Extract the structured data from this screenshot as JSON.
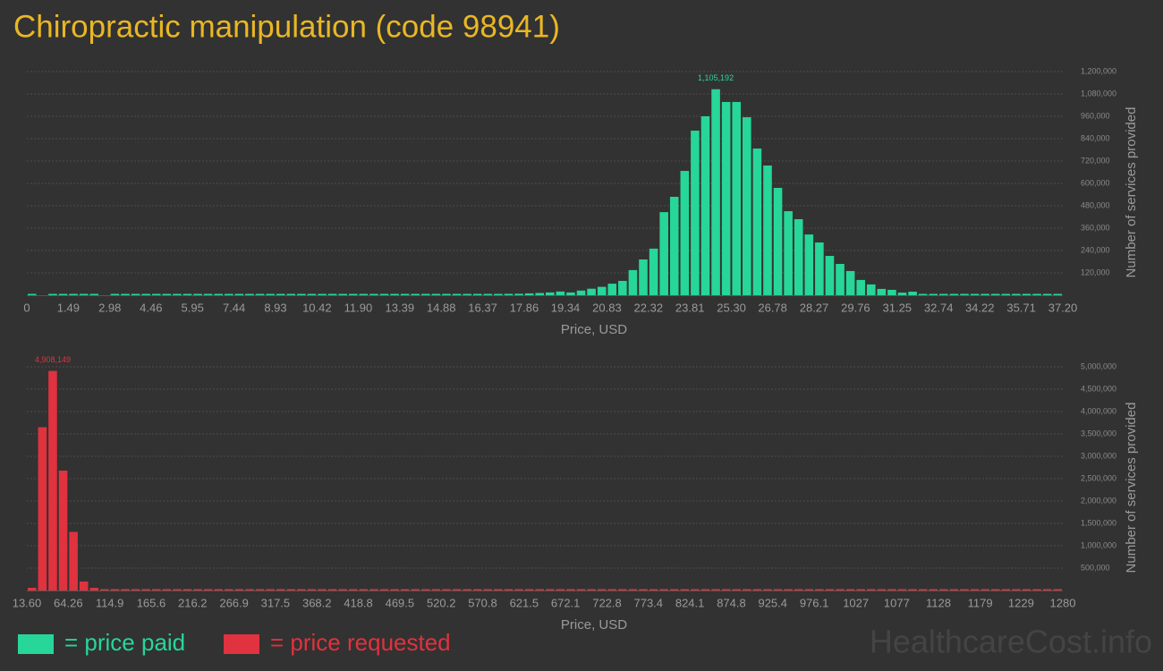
{
  "title": "Chiropractic manipulation (code 98941)",
  "watermark": "HealthcareCost.info",
  "chart_data": [
    {
      "type": "histogram",
      "name": "= price paid",
      "color": "#27d699",
      "xlabel": "Price, USD",
      "ylabel": "Number of services provided",
      "grid": true,
      "bins": [
        0,
        0.372,
        0.744,
        1.116,
        1.488,
        1.86,
        2.232,
        2.604,
        2.976,
        3.348,
        3.72,
        4.092,
        4.464,
        4.836,
        5.208,
        5.58,
        5.952,
        6.324,
        6.696,
        7.068,
        7.44,
        7.812,
        8.184,
        8.556,
        8.928,
        9.3,
        9.672,
        10.044,
        10.416,
        10.788,
        11.16,
        11.532,
        11.904,
        12.276,
        12.648,
        13.02,
        13.392,
        13.764,
        14.136,
        14.508,
        14.88,
        15.252,
        15.624,
        15.996,
        16.368,
        16.74,
        17.112,
        17.484,
        17.856,
        18.228,
        18.6,
        18.972,
        19.344,
        19.716,
        20.088,
        20.46,
        20.832,
        21.204,
        21.576,
        21.948,
        22.32,
        22.692,
        23.064,
        23.436,
        23.808,
        24.18,
        24.552,
        24.924,
        25.296,
        25.668,
        26.04,
        26.412,
        26.784,
        27.156,
        27.528,
        27.9,
        28.272,
        28.644,
        29.016,
        29.388,
        29.76,
        30.132,
        30.504,
        30.876,
        31.248,
        31.62,
        31.992,
        32.364,
        32.736,
        33.108,
        33.48,
        33.852,
        34.224,
        34.596,
        34.968,
        35.34,
        35.712,
        36.084,
        36.456,
        36.828,
        37.2
      ],
      "values": [
        3500,
        0,
        1500,
        1800,
        2000,
        800,
        500,
        0,
        1500,
        900,
        600,
        1200,
        2200,
        400,
        1800,
        700,
        600,
        2500,
        1000,
        1800,
        2100,
        1500,
        1200,
        2300,
        1900,
        2100,
        2000,
        1800,
        2200,
        2400,
        2000,
        2300,
        2100,
        2600,
        2500,
        2800,
        3000,
        2700,
        3200,
        3500,
        3400,
        3800,
        4500,
        5200,
        6000,
        7000,
        7500,
        8000,
        10000,
        12000,
        15000,
        20000,
        15000,
        25000,
        35000,
        45000,
        62000,
        77000,
        135000,
        192000,
        250000,
        446000,
        528000,
        667000,
        883000,
        960000,
        1105192,
        1037000,
        1037000,
        955000,
        787000,
        696000,
        576000,
        451000,
        408000,
        326000,
        283000,
        211000,
        168000,
        130000,
        82000,
        58000,
        34000,
        29000,
        14000,
        19000,
        5000,
        3500,
        3000,
        2500,
        2800,
        2200,
        2000,
        1800,
        2000,
        1600,
        1500,
        1700,
        1400,
        1200
      ],
      "value_labels": [
        null,
        null,
        null,
        null,
        null,
        null,
        null,
        null,
        null,
        null,
        null,
        null,
        null,
        null,
        null,
        null,
        null,
        null,
        null,
        null,
        null,
        null,
        null,
        null,
        null,
        null,
        null,
        null,
        null,
        null,
        null,
        null,
        null,
        null,
        null,
        null,
        null,
        null,
        null,
        null,
        null,
        null,
        null,
        null,
        null,
        null,
        null,
        null,
        null,
        null,
        null,
        null,
        null,
        null,
        null,
        null,
        null,
        null,
        null,
        null,
        null,
        null,
        null,
        null,
        null,
        null,
        "1,105,192",
        null,
        null,
        null,
        null,
        null,
        null,
        null,
        null,
        null,
        null,
        null,
        null,
        null,
        null,
        null,
        null,
        null,
        null,
        null,
        null,
        null,
        null,
        null,
        null,
        null,
        null,
        null,
        null,
        null,
        null,
        null,
        null,
        null
      ],
      "xlim": [
        0,
        37.2
      ],
      "xticks": [
        {
          "value": 0,
          "label": "0"
        },
        1.49,
        2.98,
        4.46,
        5.95,
        7.44,
        8.93,
        10.42,
        {
          "value": 11.9,
          "label": "11.90"
        },
        13.39,
        14.88,
        16.37,
        17.86,
        19.34,
        20.83,
        22.32,
        23.81,
        {
          "value": 25.3,
          "label": "25.30"
        },
        26.78,
        28.27,
        29.76,
        31.25,
        32.74,
        34.22,
        35.71,
        {
          "value": 37.2,
          "label": "37.20"
        }
      ],
      "ylim": [
        0,
        1200000
      ],
      "yticks": [
        {
          "value": 120000,
          "label": "120,000"
        },
        {
          "value": 240000,
          "label": "240,000"
        },
        {
          "value": 360000,
          "label": "360,000"
        },
        {
          "value": 480000,
          "label": "480,000"
        },
        {
          "value": 600000,
          "label": "600,000"
        },
        {
          "value": 720000,
          "label": "720,000"
        },
        {
          "value": 840000,
          "label": "840,000"
        },
        {
          "value": 960000,
          "label": "960,000"
        },
        {
          "value": 1080000,
          "label": "1,080,000"
        },
        {
          "value": 1200000,
          "label": "1,200,000"
        }
      ]
    },
    {
      "type": "histogram",
      "name": "= price requested",
      "color": "#e0323f",
      "xlabel": "Price, USD",
      "ylabel": "Number of services provided",
      "grid": true,
      "bins": [
        13.6,
        26.264,
        38.928,
        51.592,
        64.256,
        76.92,
        89.584,
        102.248,
        114.912,
        127.576,
        140.24,
        152.904,
        165.568,
        178.232,
        190.896,
        203.56,
        216.224,
        228.888,
        241.552,
        254.216,
        266.88,
        279.544,
        292.208,
        304.872,
        317.536,
        330.2,
        342.864,
        355.528,
        368.192,
        380.856,
        393.52,
        406.184,
        418.848,
        431.512,
        444.176,
        456.84,
        469.504,
        482.168,
        494.832,
        507.496,
        520.16,
        532.824,
        545.488,
        558.152,
        570.816,
        583.48,
        596.144,
        608.808,
        621.472,
        634.136,
        646.8,
        659.464,
        672.128,
        684.792,
        697.456,
        710.12,
        722.784,
        735.448,
        748.112,
        760.776,
        773.44,
        786.104,
        798.768,
        811.432,
        824.096,
        836.76,
        849.424,
        862.088,
        874.752,
        887.416,
        900.08,
        912.744,
        925.408,
        938.072,
        950.736,
        963.4,
        976.064,
        988.728,
        1001.392,
        1014.056,
        1026.72,
        1039.384,
        1052.048,
        1064.712,
        1077.376,
        1090.04,
        1102.704,
        1115.368,
        1128.032,
        1140.696,
        1153.36,
        1166.024,
        1178.688,
        1191.352,
        1204.016,
        1216.68,
        1229.344,
        1242.008,
        1254.672,
        1267.336,
        1280
      ],
      "values": [
        60000,
        3650000,
        4908149,
        2680000,
        1310000,
        200000,
        60000,
        25000,
        15000,
        18000,
        20000,
        10000,
        15000,
        12000,
        8000,
        10000,
        9000,
        14000,
        12000,
        6000,
        5000,
        11000,
        6000,
        4000,
        5000,
        4000,
        3000,
        4000,
        3000,
        5000,
        3000,
        3000,
        4000,
        3000,
        12000,
        3000,
        4000,
        3000,
        2000,
        3000,
        4000,
        3000,
        2000,
        3000,
        2000,
        3000,
        2000,
        2000,
        3000,
        2000,
        2000,
        15000,
        3000,
        2000,
        2000,
        3000,
        2000,
        2000,
        2000,
        3000,
        2000,
        2000,
        2000,
        2000,
        3000,
        2000,
        2000,
        2000,
        2000,
        2000,
        3000,
        2000,
        2000,
        2000,
        2000,
        2000,
        2000,
        2000,
        2000,
        2000,
        3000,
        2000,
        2000,
        2000,
        2000,
        2000,
        2000,
        2000,
        2000,
        2000,
        2000,
        2000,
        2000,
        2000,
        2000,
        2000,
        2000,
        2000,
        2000,
        18000
      ],
      "value_labels": [
        null,
        null,
        "4,908,149",
        null,
        null,
        null,
        null,
        null,
        null,
        null,
        null,
        null,
        null,
        null,
        null,
        null,
        null,
        null,
        null,
        null,
        null,
        null,
        null,
        null,
        null,
        null,
        null,
        null,
        null,
        null,
        null,
        null,
        null,
        null,
        null,
        null,
        null,
        null,
        null,
        null,
        null,
        null,
        null,
        null,
        null,
        null,
        null,
        null,
        null,
        null,
        null,
        null,
        null,
        null,
        null,
        null,
        null,
        null,
        null,
        null,
        null,
        null,
        null,
        null,
        null,
        null,
        null,
        null,
        null,
        null,
        null,
        null,
        null,
        null,
        null,
        null,
        null,
        null,
        null,
        null,
        null,
        null,
        null,
        null,
        null,
        null,
        null,
        null,
        null,
        null,
        null,
        null,
        null,
        null,
        null,
        null,
        null,
        null,
        null,
        null
      ],
      "xlim": [
        13.6,
        1280
      ],
      "xticks": [
        {
          "value": 13.6,
          "label": "13.60"
        },
        64.26,
        114.9,
        165.6,
        216.2,
        266.9,
        317.5,
        368.2,
        418.8,
        469.5,
        520.2,
        570.8,
        621.5,
        672.1,
        722.8,
        773.4,
        824.1,
        874.8,
        925.4,
        976.1,
        1027,
        1077,
        1128,
        1179,
        1229,
        1280
      ],
      "ylim": [
        0,
        5000000
      ],
      "yticks": [
        {
          "value": 500000,
          "label": "500,000"
        },
        {
          "value": 1000000,
          "label": "1,000,000"
        },
        {
          "value": 1500000,
          "label": "1,500,000"
        },
        {
          "value": 2000000,
          "label": "2,000,000"
        },
        {
          "value": 2500000,
          "label": "2,500,000"
        },
        {
          "value": 3000000,
          "label": "3,000,000"
        },
        {
          "value": 3500000,
          "label": "3,500,000"
        },
        {
          "value": 4000000,
          "label": "4,000,000"
        },
        {
          "value": 4500000,
          "label": "4,500,000"
        },
        {
          "value": 5000000,
          "label": "5,000,000"
        }
      ]
    }
  ]
}
